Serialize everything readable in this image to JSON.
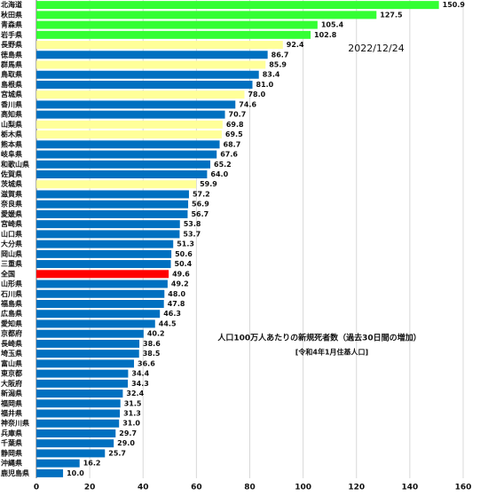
{
  "chart_data": {
    "type": "bar",
    "orientation": "horizontal",
    "annotation_date": "2022/12/24",
    "annotation_title": "人口100万人あたりの新規死者数（過去30日間の増加）",
    "annotation_note": "[令和4年1月住基人口]",
    "categories": [
      "北海道",
      "秋田県",
      "青森県",
      "岩手県",
      "長野県",
      "徳島県",
      "群馬県",
      "鳥取県",
      "島根県",
      "宮城県",
      "香川県",
      "高知県",
      "山梨県",
      "栃木県",
      "熊本県",
      "岐阜県",
      "和歌山県",
      "佐賀県",
      "茨城県",
      "滋賀県",
      "奈良県",
      "愛媛県",
      "宮崎県",
      "山口県",
      "大分県",
      "岡山県",
      "三重県",
      "全国",
      "山形県",
      "石川県",
      "福島県",
      "広島県",
      "愛知県",
      "京都府",
      "長崎県",
      "埼玉県",
      "富山県",
      "東京都",
      "大阪府",
      "新潟県",
      "福岡県",
      "福井県",
      "神奈川県",
      "兵庫県",
      "千葉県",
      "静岡県",
      "沖縄県",
      "鹿児島県"
    ],
    "values": [
      150.9,
      127.5,
      105.4,
      102.8,
      92.4,
      86.7,
      85.9,
      83.4,
      81.0,
      78.0,
      74.6,
      70.7,
      69.8,
      69.5,
      68.7,
      67.6,
      65.2,
      64.0,
      59.9,
      57.2,
      56.9,
      56.7,
      53.8,
      53.7,
      51.3,
      50.6,
      50.4,
      49.6,
      49.2,
      48.0,
      47.8,
      46.3,
      44.5,
      40.2,
      38.6,
      38.5,
      36.6,
      34.4,
      34.3,
      32.4,
      31.5,
      31.3,
      31.0,
      29.7,
      29.0,
      25.7,
      16.2,
      10.0
    ],
    "value_labels": [
      "150.9",
      "127.5",
      "105.4",
      "102.8",
      "92.4",
      "86.7",
      "85.9",
      "83.4",
      "81.0",
      "78.0",
      "74.6",
      "70.7",
      "69.8",
      "69.5",
      "68.7",
      "67.6",
      "65.2",
      "64.0",
      "59.9",
      "57.2",
      "56.9",
      "56.7",
      "53.8",
      "53.7",
      "51.3",
      "50.6",
      "50.4",
      "49.6",
      "49.2",
      "48.0",
      "47.8",
      "46.3",
      "44.5",
      "40.2",
      "38.6",
      "38.5",
      "36.6",
      "34.4",
      "34.3",
      "32.4",
      "31.5",
      "31.3",
      "31.0",
      "29.7",
      "29.0",
      "25.7",
      "16.2",
      "10.0"
    ],
    "colors": [
      "#33ff33",
      "#33ff33",
      "#33ff33",
      "#33ff33",
      "#ffff99",
      "#0070c0",
      "#ffff99",
      "#0070c0",
      "#0070c0",
      "#ffff99",
      "#0070c0",
      "#0070c0",
      "#ffff99",
      "#ffff99",
      "#0070c0",
      "#0070c0",
      "#0070c0",
      "#0070c0",
      "#ffff99",
      "#0070c0",
      "#0070c0",
      "#0070c0",
      "#0070c0",
      "#0070c0",
      "#0070c0",
      "#0070c0",
      "#0070c0",
      "#ff0000",
      "#0070c0",
      "#0070c0",
      "#0070c0",
      "#0070c0",
      "#0070c0",
      "#0070c0",
      "#0070c0",
      "#0070c0",
      "#0070c0",
      "#0070c0",
      "#0070c0",
      "#0070c0",
      "#0070c0",
      "#0070c0",
      "#0070c0",
      "#0070c0",
      "#0070c0",
      "#0070c0",
      "#0070c0",
      "#0070c0"
    ],
    "xlim": [
      0,
      160
    ],
    "xticks": [
      0,
      20,
      40,
      60,
      80,
      100,
      120,
      140,
      160
    ],
    "grid": true
  }
}
